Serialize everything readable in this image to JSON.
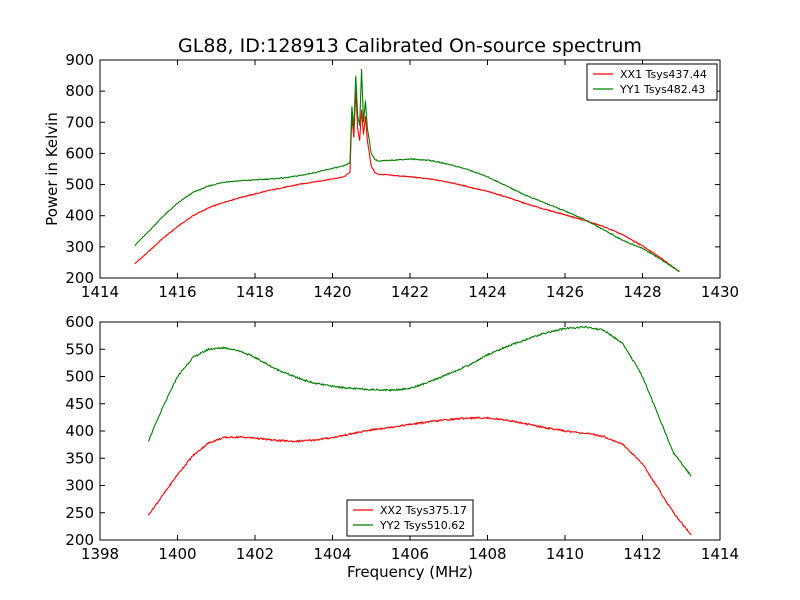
{
  "figure": {
    "title": "GL88, ID:128913 Calibrated On-source spectrum",
    "background": "#ffffff"
  },
  "colors": {
    "red": "#ff0000",
    "green": "#008000",
    "axes": "#000000"
  },
  "chart_data": [
    {
      "type": "line",
      "title": "GL88, ID:128913 Calibrated On-source spectrum",
      "xlabel": "",
      "ylabel": "Power in Kelvin",
      "xlim": [
        1414,
        1430
      ],
      "ylim": [
        200,
        900
      ],
      "xticks": [
        1414,
        1416,
        1418,
        1420,
        1422,
        1424,
        1426,
        1428,
        1430
      ],
      "yticks": [
        200,
        300,
        400,
        500,
        600,
        700,
        800,
        900
      ],
      "grid": false,
      "legend_position": "top-right",
      "series": [
        {
          "name": "XX1 Tsys437.44",
          "color": "#ff0000",
          "x": [
            1414.9,
            1415.3,
            1415.6,
            1416.0,
            1416.4,
            1416.8,
            1417.2,
            1417.6,
            1418.0,
            1418.4,
            1418.8,
            1419.2,
            1419.6,
            1420.0,
            1420.3,
            1420.45,
            1420.5,
            1420.55,
            1420.6,
            1420.65,
            1420.7,
            1420.75,
            1420.8,
            1420.85,
            1420.9,
            1420.95,
            1421.0,
            1421.1,
            1421.2,
            1421.5,
            1422.0,
            1422.5,
            1423.0,
            1423.5,
            1424.0,
            1424.5,
            1425.0,
            1425.5,
            1426.0,
            1426.5,
            1427.0,
            1427.5,
            1428.0,
            1428.5,
            1428.95
          ],
          "y": [
            246,
            290,
            325,
            365,
            400,
            425,
            443,
            458,
            470,
            482,
            492,
            502,
            510,
            518,
            525,
            540,
            720,
            650,
            800,
            680,
            640,
            740,
            660,
            720,
            640,
            600,
            560,
            537,
            533,
            530,
            525,
            518,
            508,
            493,
            478,
            460,
            438,
            420,
            403,
            385,
            365,
            338,
            303,
            262,
            221
          ]
        },
        {
          "name": "YY1 Tsys482.43",
          "color": "#008000",
          "x": [
            1414.9,
            1415.3,
            1415.6,
            1416.0,
            1416.4,
            1416.8,
            1417.2,
            1417.6,
            1418.0,
            1418.4,
            1418.8,
            1419.2,
            1419.6,
            1420.0,
            1420.3,
            1420.45,
            1420.5,
            1420.55,
            1420.6,
            1420.65,
            1420.7,
            1420.75,
            1420.8,
            1420.85,
            1420.9,
            1420.95,
            1421.0,
            1421.1,
            1421.2,
            1421.5,
            1422.0,
            1422.5,
            1423.0,
            1423.5,
            1424.0,
            1424.5,
            1425.0,
            1425.5,
            1426.0,
            1426.5,
            1427.0,
            1427.5,
            1428.0,
            1428.5,
            1428.95
          ],
          "y": [
            305,
            355,
            395,
            440,
            475,
            495,
            508,
            512,
            515,
            518,
            522,
            530,
            540,
            552,
            560,
            570,
            750,
            680,
            850,
            720,
            690,
            870,
            700,
            770,
            680,
            640,
            600,
            580,
            575,
            578,
            582,
            578,
            565,
            548,
            525,
            495,
            465,
            440,
            415,
            388,
            355,
            320,
            295,
            258,
            221
          ]
        }
      ]
    },
    {
      "type": "line",
      "title": "",
      "xlabel": "Frequency (MHz)",
      "ylabel": "",
      "xlim": [
        1398,
        1414
      ],
      "ylim": [
        200,
        600
      ],
      "xticks": [
        1398,
        1400,
        1402,
        1404,
        1406,
        1408,
        1410,
        1412,
        1414
      ],
      "yticks": [
        200,
        250,
        300,
        350,
        400,
        450,
        500,
        550,
        600
      ],
      "grid": false,
      "legend_position": "bottom-center",
      "series": [
        {
          "name": "XX2 Tsys375.17",
          "color": "#ff0000",
          "x": [
            1399.25,
            1399.6,
            1400.0,
            1400.4,
            1400.8,
            1401.2,
            1401.6,
            1402.0,
            1402.5,
            1403.0,
            1403.5,
            1404.0,
            1404.5,
            1405.0,
            1405.5,
            1406.0,
            1406.5,
            1407.0,
            1407.5,
            1408.0,
            1408.5,
            1409.0,
            1409.5,
            1410.0,
            1410.5,
            1411.0,
            1411.5,
            1412.0,
            1412.4,
            1412.8,
            1413.25
          ],
          "y": [
            246,
            280,
            320,
            355,
            378,
            388,
            389,
            387,
            383,
            381,
            383,
            388,
            395,
            402,
            407,
            412,
            417,
            421,
            424,
            424,
            420,
            413,
            406,
            400,
            396,
            390,
            375,
            340,
            295,
            250,
            210
          ]
        },
        {
          "name": "YY2 Tsys510.62",
          "color": "#008000",
          "x": [
            1399.25,
            1399.6,
            1400.0,
            1400.4,
            1400.8,
            1401.2,
            1401.6,
            1402.0,
            1402.5,
            1403.0,
            1403.5,
            1404.0,
            1404.5,
            1405.0,
            1405.5,
            1406.0,
            1406.5,
            1407.0,
            1407.5,
            1408.0,
            1408.5,
            1409.0,
            1409.5,
            1410.0,
            1410.5,
            1411.0,
            1411.5,
            1412.0,
            1412.4,
            1412.8,
            1413.25
          ],
          "y": [
            382,
            440,
            500,
            535,
            550,
            553,
            547,
            535,
            515,
            500,
            488,
            482,
            478,
            476,
            475,
            478,
            490,
            505,
            520,
            540,
            555,
            568,
            580,
            588,
            591,
            585,
            560,
            500,
            430,
            360,
            318
          ]
        }
      ]
    }
  ]
}
